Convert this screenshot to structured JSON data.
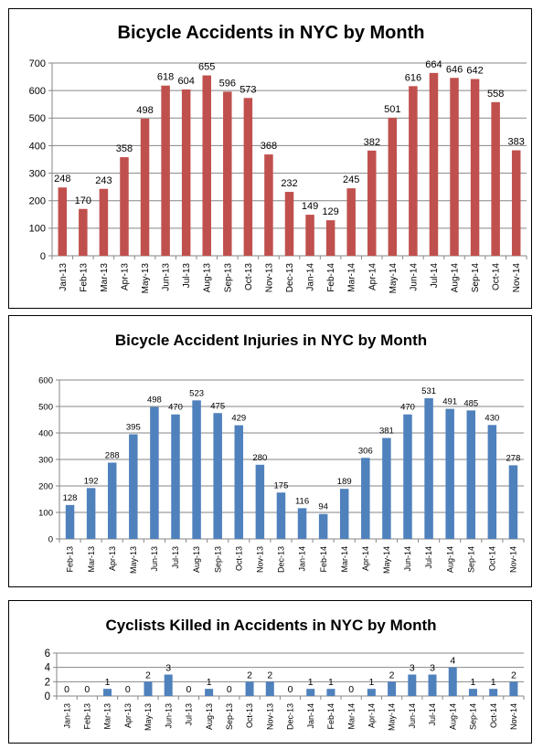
{
  "colors": {
    "red_bar": "#C0504D",
    "blue_bar": "#4F81BD",
    "grid": "#868686",
    "axis": "#868686"
  },
  "chart_data": [
    {
      "type": "bar",
      "title": "Bicycle Accidents in NYC by Month",
      "categories": [
        "Jan-13",
        "Feb-13",
        "Mar-13",
        "Apr-13",
        "May-13",
        "Jun-13",
        "Jul-13",
        "Aug-13",
        "Sep-13",
        "Oct-13",
        "Nov-13",
        "Dec-13",
        "Jan-14",
        "Feb-14",
        "Mar-14",
        "Apr-14",
        "May-14",
        "Jun-14",
        "Jul-14",
        "Aug-14",
        "Sep-14",
        "Oct-14",
        "Nov-14"
      ],
      "values": [
        248,
        170,
        243,
        358,
        498,
        618,
        604,
        655,
        596,
        573,
        368,
        232,
        149,
        129,
        245,
        382,
        501,
        616,
        664,
        646,
        642,
        558,
        383
      ],
      "ylim": [
        0,
        700
      ],
      "yticks": [
        0,
        100,
        200,
        300,
        400,
        500,
        600,
        700
      ],
      "grid": true,
      "color": "#C0504D"
    },
    {
      "type": "bar",
      "title": "Bicycle Accident Injuries  in NYC by Month",
      "categories": [
        "Feb-13",
        "Mar-13",
        "Apr-13",
        "May-13",
        "Jun-13",
        "Jul-13",
        "Aug-13",
        "Sep-13",
        "Oct-13",
        "Nov-13",
        "Dec-13",
        "Jan-14",
        "Feb-14",
        "Mar-14",
        "Apr-14",
        "May-14",
        "Jun-14",
        "Jul-14",
        "Aug-14",
        "Sep-14",
        "Oct-14",
        "Nov-14"
      ],
      "values": [
        128,
        192,
        288,
        395,
        498,
        470,
        523,
        475,
        429,
        280,
        175,
        116,
        94,
        189,
        306,
        381,
        470,
        531,
        491,
        485,
        430,
        278
      ],
      "ylim": [
        0,
        600
      ],
      "yticks": [
        0,
        100,
        200,
        300,
        400,
        500,
        600
      ],
      "grid": true,
      "color": "#4F81BD"
    },
    {
      "type": "bar",
      "title": "Cyclists Killed in Accidents in NYC by Month",
      "categories": [
        "Jan-13",
        "Feb-13",
        "Mar-13",
        "Apr-13",
        "May-13",
        "Jun-13",
        "Jul-13",
        "Aug-13",
        "Sep-13",
        "Oct-13",
        "Nov-13",
        "Dec-13",
        "Jan-14",
        "Feb-14",
        "Mar-14",
        "Apr-14",
        "May-14",
        "Jun-14",
        "Jul-14",
        "Aug-14",
        "Sep-14",
        "Oct-14",
        "Nov-14"
      ],
      "values": [
        0,
        0,
        1,
        0,
        2,
        3,
        0,
        1,
        0,
        2,
        2,
        0,
        1,
        1,
        0,
        1,
        2,
        3,
        3,
        4,
        1,
        1,
        2
      ],
      "ylim": [
        0,
        6
      ],
      "yticks": [
        0,
        2,
        4,
        6
      ],
      "grid": true,
      "color": "#4F81BD"
    }
  ]
}
